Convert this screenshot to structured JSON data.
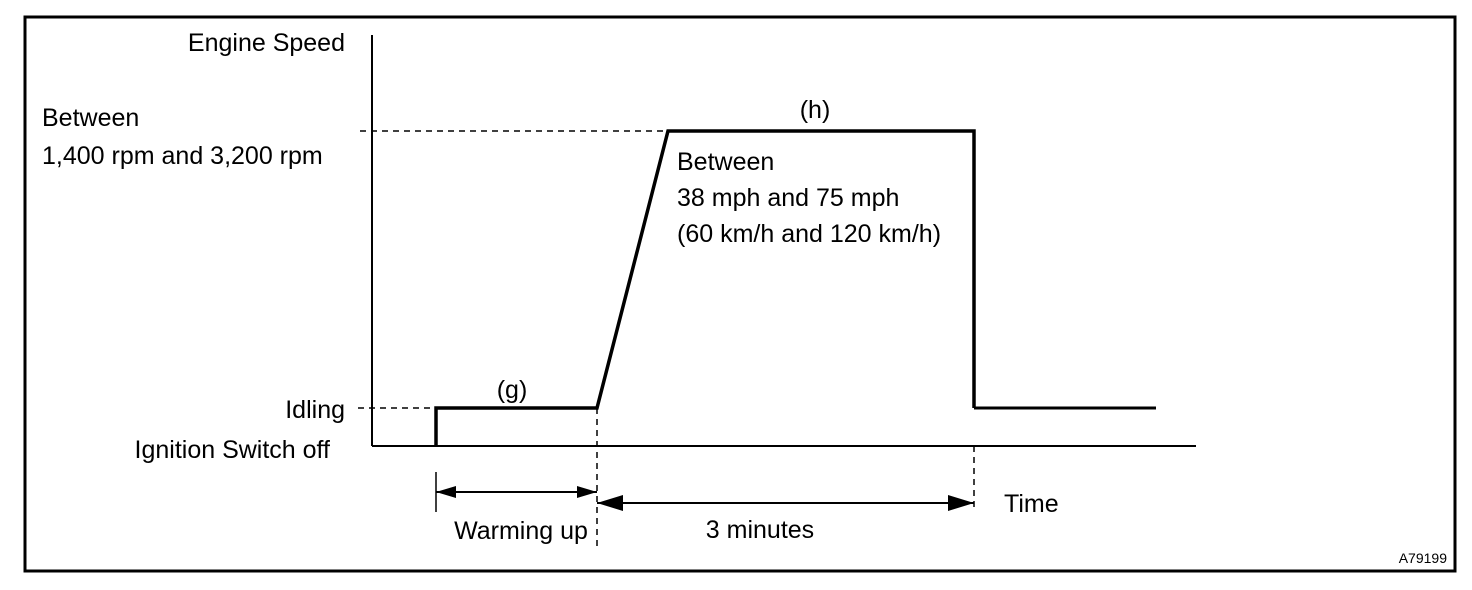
{
  "labels": {
    "y_axis": "Engine Speed",
    "high_speed_line1": "Between",
    "high_speed_line2": "1,400 rpm and 3,200 rpm",
    "idling": "Idling",
    "ignition_off": "Ignition Switch off",
    "step_g": "(g)",
    "step_h": "(h)",
    "vehicle_speed_line1": "Between",
    "vehicle_speed_line2": "38 mph and 75 mph",
    "vehicle_speed_line3": "(60 km/h and 120 km/h)",
    "x_axis": "Time",
    "warming_up": "Warming up",
    "duration": "3 minutes",
    "figure_code": "A79199"
  }
}
